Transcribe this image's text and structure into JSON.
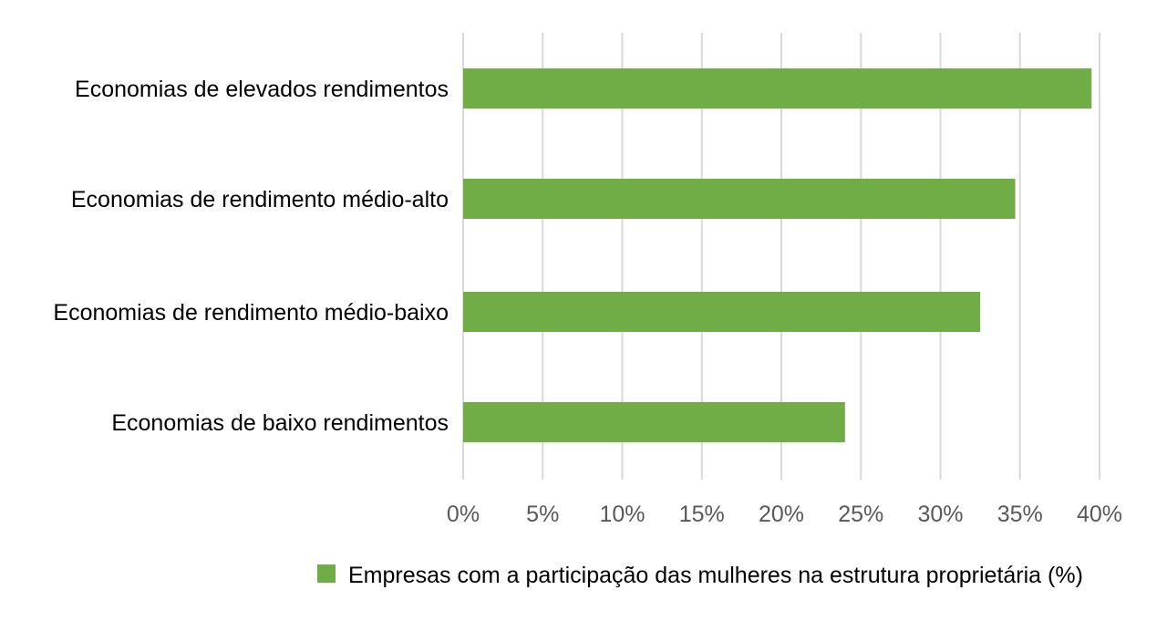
{
  "chart_data": {
    "type": "bar",
    "orientation": "horizontal",
    "categories": [
      "Economias de elevados rendimentos",
      "Economias de rendimento médio-alto",
      "Economias de rendimento médio-baixo",
      "Economias de baixo rendimentos"
    ],
    "series": [
      {
        "name": "Empresas com a participação das mulheres na estrutura proprietária (%)",
        "values": [
          39.5,
          34.7,
          32.5,
          24.0
        ],
        "color": "#70AD47"
      }
    ],
    "xlim": [
      0,
      40
    ],
    "x_ticks": [
      0,
      5,
      10,
      15,
      20,
      25,
      30,
      35,
      40
    ],
    "x_tick_labels": [
      "0%",
      "5%",
      "10%",
      "15%",
      "20%",
      "25%",
      "30%",
      "35%",
      "40%"
    ],
    "title": "",
    "xlabel": "",
    "ylabel": "",
    "grid": "vertical",
    "legend_position": "bottom"
  },
  "colors": {
    "bar": "#70AD47",
    "grid": "#D9D9D9",
    "tick_text": "#595959",
    "text": "#000000"
  }
}
